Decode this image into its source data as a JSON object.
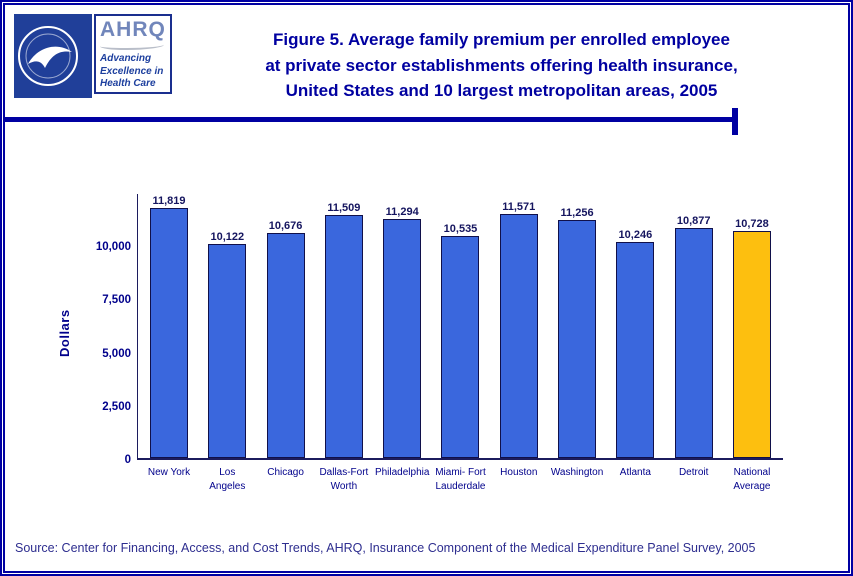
{
  "header": {
    "title_lines": [
      "Figure 5. Average family premium per enrolled employee",
      "at private sector establishments offering health insurance,",
      "United States and 10 largest metropolitan areas, 2005"
    ],
    "logos": {
      "hhs_seal": "hhs-seal",
      "ahrq_name": "AHRQ",
      "ahrq_tagline_lines": [
        "Advancing",
        "Excellence in",
        "Health Care"
      ]
    }
  },
  "chart_data": {
    "type": "bar",
    "title": "Figure 5. Average family premium per enrolled employee at private sector establishments offering health insurance, United States and 10 largest metropolitan areas, 2005",
    "xlabel": "",
    "ylabel": "Dollars",
    "ylim": [
      0,
      12500
    ],
    "yticks": [
      0,
      2500,
      5000,
      7500,
      10000
    ],
    "ytick_labels": [
      "0",
      "2,500",
      "5,000",
      "7,500",
      "10,000"
    ],
    "grid": false,
    "legend": "none",
    "categories": [
      "New York",
      "Los Angeles",
      "Chicago",
      "Dallas-Fort Worth",
      "Philadelphia",
      "Miami-Fort Lauderdale",
      "Houston",
      "Washington",
      "Atlanta",
      "Detroit",
      "National Average"
    ],
    "category_labels": [
      [
        "New York"
      ],
      [
        "Los",
        "Angeles"
      ],
      [
        "Chicago"
      ],
      [
        "Dallas-Fort",
        "Worth"
      ],
      [
        "Philadelphia"
      ],
      [
        "Miami- Fort",
        "Lauderdale"
      ],
      [
        "Houston"
      ],
      [
        "Washington"
      ],
      [
        "Atlanta"
      ],
      [
        "Detroit"
      ],
      [
        "National",
        "Average"
      ]
    ],
    "values": [
      11819,
      10122,
      10676,
      11509,
      11294,
      10535,
      11571,
      11256,
      10246,
      10877,
      10728
    ],
    "value_labels": [
      "11,819",
      "10,122",
      "10,676",
      "11,509",
      "11,294",
      "10,535",
      "11,571",
      "11,256",
      "10,246",
      "10,877",
      "10,728"
    ],
    "bar_color": "#3a67dd",
    "highlight_color": "#fdbf0f",
    "highlight_index": 10
  },
  "colors": {
    "page_border": "#0000a2",
    "title_text": "#0000a0",
    "axis_text": "#00008b",
    "value_text": "#15155f",
    "source_text": "#2e2e8f"
  },
  "footer": {
    "source": "Source: Center for Financing, Access, and Cost Trends, AHRQ, Insurance Component of the Medical Expenditure Panel Survey, 2005"
  }
}
